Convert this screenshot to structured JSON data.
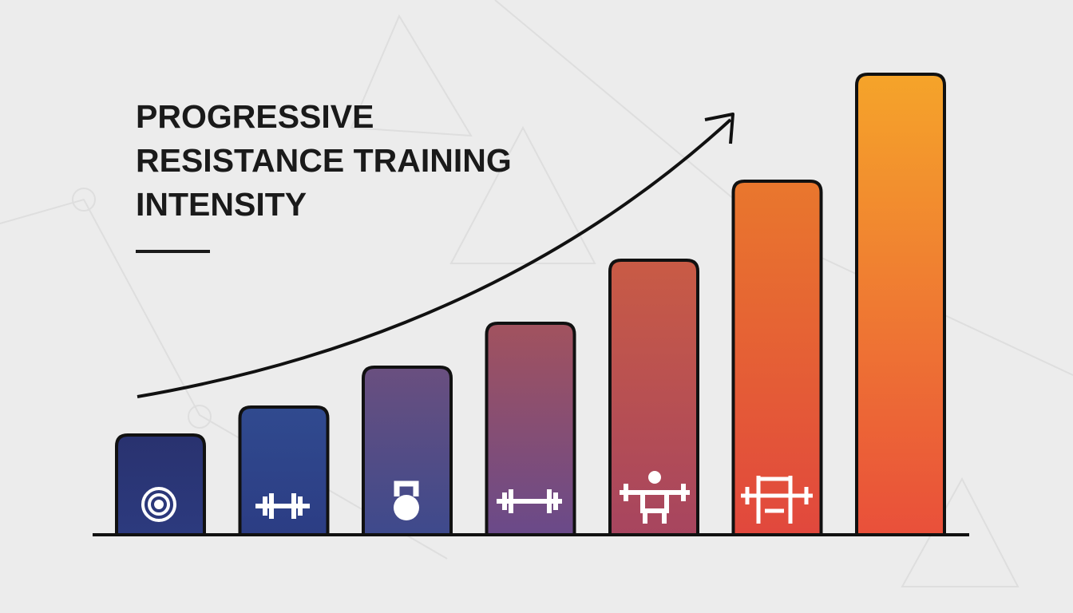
{
  "chart_data": {
    "type": "bar",
    "title": [
      "PROGRESSIVE",
      "RESISTANCE TRAINING",
      "INTENSITY"
    ],
    "values": [
      123,
      158,
      208,
      263,
      342,
      441,
      575
    ],
    "gradients": [
      [
        "#29326f",
        "#2c3a7e"
      ],
      [
        "#304a8f",
        "#2c3d84"
      ],
      [
        "#6a4f7f",
        "#3e4a8c"
      ],
      [
        "#a2525e",
        "#6a4a89"
      ],
      [
        "#c95b45",
        "#a7455f"
      ],
      [
        "#e9772d",
        "#e1483d"
      ],
      [
        "#f5a42a",
        "#e9503a"
      ]
    ],
    "ylim": [
      0,
      600
    ]
  }
}
